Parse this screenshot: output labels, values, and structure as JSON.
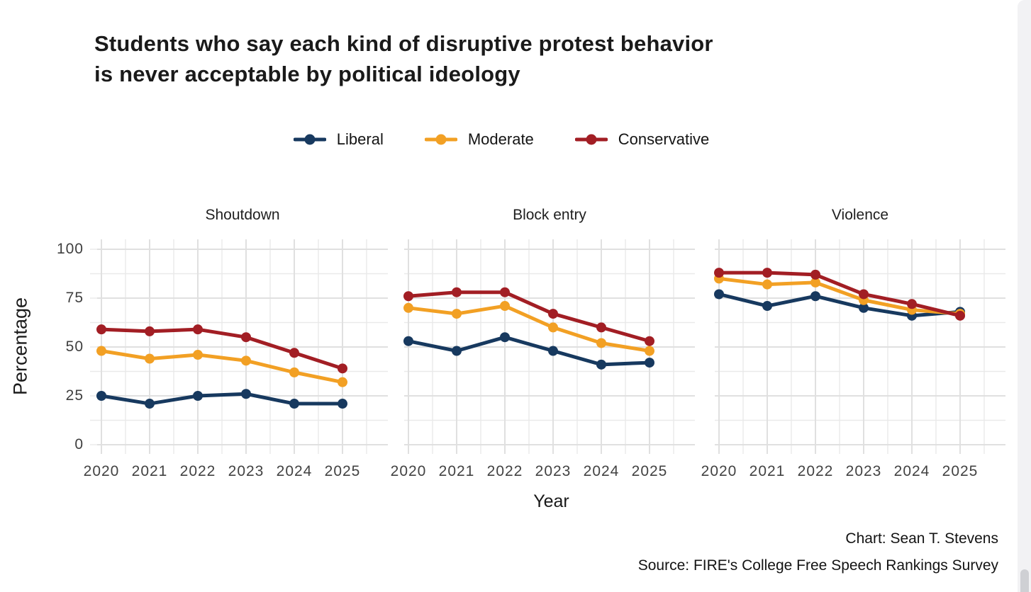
{
  "title": {
    "line1": "Students who say each kind of disruptive protest behavior",
    "line2": "is never acceptable by political ideology"
  },
  "legend": [
    {
      "label": "Liberal",
      "color": "#17395f"
    },
    {
      "label": "Moderate",
      "color": "#f2a024"
    },
    {
      "label": "Conservative",
      "color": "#a21e24"
    }
  ],
  "axes": {
    "y_label": "Percentage",
    "x_label": "Year",
    "y_ticks": [
      100,
      75,
      50,
      25,
      0
    ],
    "x_ticks": [
      "2020",
      "2021",
      "2022",
      "2023",
      "2024",
      "2025"
    ]
  },
  "footer": {
    "credit": "Chart: Sean T. Stevens",
    "source": "Source: FIRE's College Free Speech Rankings Survey"
  },
  "chart_data": {
    "type": "line",
    "x": [
      2020,
      2021,
      2022,
      2023,
      2024,
      2025
    ],
    "ylim": [
      0,
      100
    ],
    "ylabel": "Percentage",
    "xlabel": "Year",
    "grid": true,
    "legend_position": "top",
    "facets": [
      {
        "title": "Shoutdown",
        "series": [
          {
            "name": "Liberal",
            "color": "#17395f",
            "values": [
              25,
              21,
              25,
              26,
              21,
              21
            ]
          },
          {
            "name": "Moderate",
            "color": "#f2a024",
            "values": [
              48,
              44,
              46,
              43,
              37,
              32
            ]
          },
          {
            "name": "Conservative",
            "color": "#a21e24",
            "values": [
              59,
              58,
              59,
              55,
              47,
              39
            ]
          }
        ]
      },
      {
        "title": "Block entry",
        "series": [
          {
            "name": "Liberal",
            "color": "#17395f",
            "values": [
              53,
              48,
              55,
              48,
              41,
              42
            ]
          },
          {
            "name": "Moderate",
            "color": "#f2a024",
            "values": [
              70,
              67,
              71,
              60,
              52,
              48
            ]
          },
          {
            "name": "Conservative",
            "color": "#a21e24",
            "values": [
              76,
              78,
              78,
              67,
              60,
              53
            ]
          }
        ]
      },
      {
        "title": "Violence",
        "series": [
          {
            "name": "Liberal",
            "color": "#17395f",
            "values": [
              77,
              71,
              76,
              70,
              66,
              68
            ]
          },
          {
            "name": "Moderate",
            "color": "#f2a024",
            "values": [
              85,
              82,
              83,
              74,
              69,
              67
            ]
          },
          {
            "name": "Conservative",
            "color": "#a21e24",
            "values": [
              88,
              88,
              87,
              77,
              72,
              66
            ]
          }
        ]
      }
    ]
  },
  "colors": {
    "grid_major": "#e0e0e0",
    "grid_minor": "#e9e9e9",
    "background": "#ffffff"
  }
}
